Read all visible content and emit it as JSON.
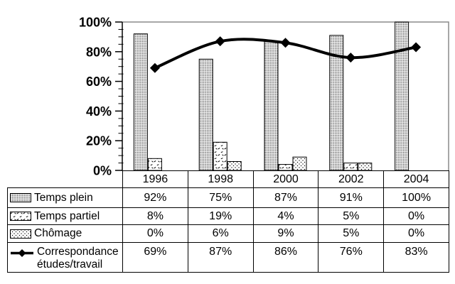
{
  "chart_data": {
    "type": "combo-bar-line",
    "categories": [
      "1996",
      "1998",
      "2000",
      "2002",
      "2004"
    ],
    "series": [
      {
        "name": "Temps plein",
        "type": "bar",
        "pattern": "dense-dots",
        "values": [
          92,
          75,
          87,
          91,
          100
        ]
      },
      {
        "name": "Temps partiel",
        "type": "bar",
        "pattern": "sparse-ticks",
        "values": [
          8,
          19,
          4,
          5,
          0
        ]
      },
      {
        "name": "Chômage",
        "type": "bar",
        "pattern": "diagonal-dots",
        "values": [
          0,
          6,
          9,
          5,
          0
        ]
      },
      {
        "name": "Correspondance études/travail",
        "type": "line",
        "marker": "diamond",
        "values": [
          69,
          87,
          86,
          76,
          83
        ]
      }
    ],
    "title": "",
    "xlabel": "",
    "ylabel": "",
    "ylim": [
      0,
      100
    ],
    "yticks": [
      0,
      20,
      40,
      60,
      80,
      100
    ],
    "ytick_format": "{v}%",
    "minor_tick_step": 5,
    "grid": false,
    "line_smoothed": true,
    "legend_position": "data-table-left-column",
    "colors": {
      "series": "#000000",
      "plot_border": "#8a8a8a",
      "background": "#ffffff"
    }
  },
  "table": {
    "years": [
      "1996",
      "1998",
      "2000",
      "2002",
      "2004"
    ],
    "rows": [
      {
        "label": "Temps plein",
        "icon": "dense-dots-swatch",
        "values": [
          "92%",
          "75%",
          "87%",
          "91%",
          "100%"
        ]
      },
      {
        "label": "Temps partiel",
        "icon": "sparse-ticks-swatch",
        "values": [
          "8%",
          "19%",
          "4%",
          "5%",
          "0%"
        ]
      },
      {
        "label": "Chômage",
        "icon": "diagonal-dots-swatch",
        "values": [
          "0%",
          "6%",
          "9%",
          "5%",
          "0%"
        ]
      },
      {
        "label": "Correspondance études/travail",
        "icon": "line-diamond-swatch",
        "values": [
          "69%",
          "87%",
          "86%",
          "76%",
          "83%"
        ]
      }
    ]
  }
}
